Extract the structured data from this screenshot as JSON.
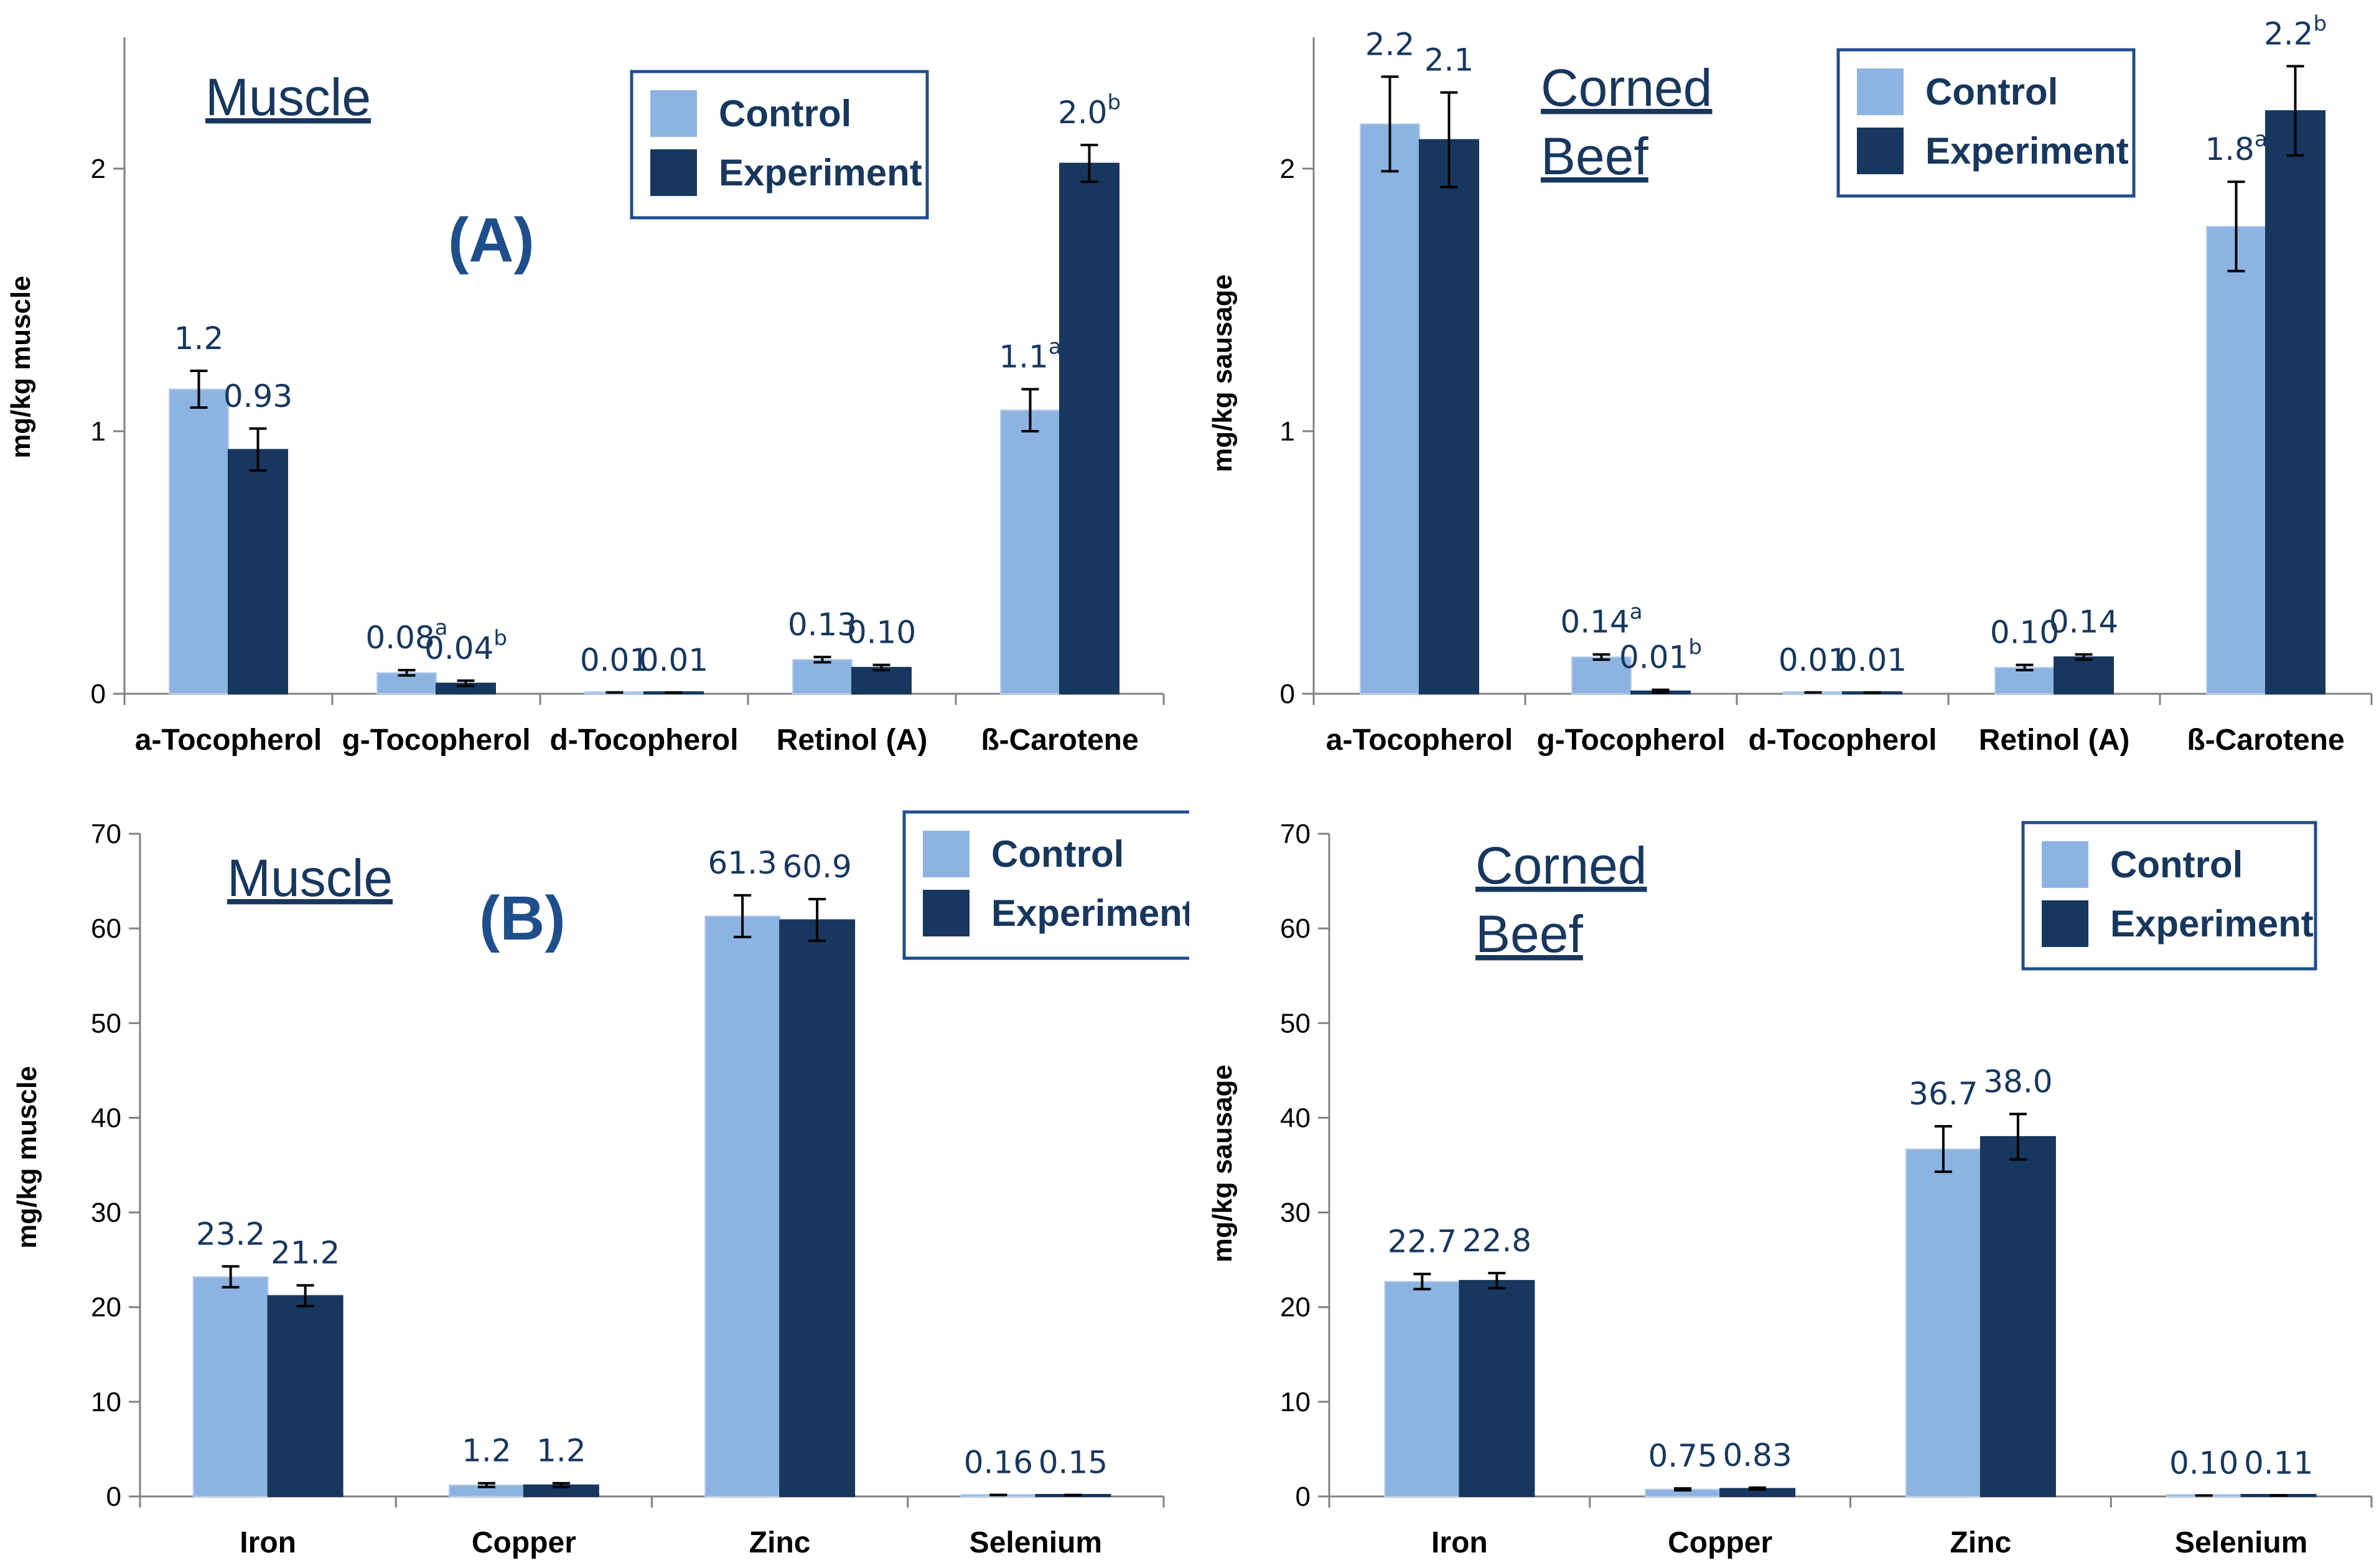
{
  "colors": {
    "control": "#8db3e2",
    "experiment": "#17375e",
    "value_text": "#17375e",
    "legend_border": "#1f4e8c",
    "panel_label": "#1f4e8c"
  },
  "chart_data": [
    {
      "id": "A-muscle",
      "type": "bar",
      "title_lines": [
        "Muscle"
      ],
      "panel_label": "(A)",
      "ylabel": "mg/kg muscle",
      "ylim": [
        0,
        2.5
      ],
      "yticks": [
        0,
        1,
        2
      ],
      "categories": [
        "a-Tocopherol",
        "g-Tocopherol",
        "d-Tocopherol",
        "Retinol (A)",
        "ß-Carotene"
      ],
      "legend": [
        "Control",
        "Experiment"
      ],
      "series": [
        {
          "name": "Control",
          "values": [
            1.16,
            0.08,
            0.005,
            0.13,
            1.08
          ],
          "errors": [
            0.07,
            0.01,
            0.0,
            0.01,
            0.08
          ],
          "labels": [
            "1.2",
            "0.08",
            "0.01",
            "0.13",
            "1.1"
          ],
          "sups": [
            "",
            "a",
            "",
            "",
            "a"
          ]
        },
        {
          "name": "Experiment",
          "values": [
            0.93,
            0.04,
            0.005,
            0.1,
            2.02
          ],
          "errors": [
            0.08,
            0.01,
            0.0,
            0.01,
            0.07
          ],
          "labels": [
            "0.93",
            "0.04",
            "0.01",
            "0.10",
            "2.0"
          ],
          "sups": [
            "",
            "b",
            "",
            "",
            "b"
          ]
        }
      ]
    },
    {
      "id": "A-corned-beef",
      "type": "bar",
      "title_lines": [
        "Corned",
        "Beef"
      ],
      "panel_label": "",
      "ylabel": "mg/kg  sausage",
      "ylim": [
        0,
        2.5
      ],
      "yticks": [
        0,
        1,
        2
      ],
      "categories": [
        "a-Tocopherol",
        "g-Tocopherol",
        "d-Tocopherol",
        "Retinol (A)",
        "ß-Carotene"
      ],
      "legend": [
        "Control",
        "Experiment"
      ],
      "series": [
        {
          "name": "Control",
          "values": [
            2.17,
            0.14,
            0.005,
            0.1,
            1.78
          ],
          "errors": [
            0.18,
            0.01,
            0.0,
            0.01,
            0.17
          ],
          "labels": [
            "2.2",
            "0.14",
            "0.01",
            "0.10",
            "1.8"
          ],
          "sups": [
            "",
            "a",
            "",
            "",
            "a"
          ]
        },
        {
          "name": "Experiment",
          "values": [
            2.11,
            0.01,
            0.005,
            0.14,
            2.22
          ],
          "errors": [
            0.18,
            0.005,
            0.0,
            0.01,
            0.17
          ],
          "labels": [
            "2.1",
            "0.01",
            "0.01",
            "0.14",
            "2.2"
          ],
          "sups": [
            "",
            "b",
            "",
            "",
            "b"
          ]
        }
      ]
    },
    {
      "id": "B-muscle",
      "type": "bar",
      "title_lines": [
        "Muscle"
      ],
      "panel_label": "(B)",
      "ylabel": "mg/kg  muscle",
      "ylim": [
        0,
        70
      ],
      "yticks": [
        0,
        10,
        20,
        30,
        40,
        50,
        60,
        70
      ],
      "categories": [
        "Iron",
        "Copper",
        "Zinc",
        "Selenium"
      ],
      "legend": [
        "Control",
        "Experiment"
      ],
      "series": [
        {
          "name": "Control",
          "values": [
            23.2,
            1.2,
            61.3,
            0.16
          ],
          "errors": [
            1.1,
            0.2,
            2.2,
            0.0
          ],
          "labels": [
            "23.2",
            "1.2",
            "61.3",
            "0.16"
          ],
          "sups": [
            "",
            "",
            "",
            ""
          ]
        },
        {
          "name": "Experiment",
          "values": [
            21.2,
            1.2,
            60.9,
            0.15
          ],
          "errors": [
            1.1,
            0.2,
            2.2,
            0.0
          ],
          "labels": [
            "21.2",
            "1.2",
            "60.9",
            "0.15"
          ],
          "sups": [
            "",
            "",
            "",
            ""
          ]
        }
      ]
    },
    {
      "id": "B-corned-beef",
      "type": "bar",
      "title_lines": [
        "Corned",
        "Beef"
      ],
      "panel_label": "",
      "ylabel": "mg/kg  sausage",
      "ylim": [
        0,
        70
      ],
      "yticks": [
        0,
        10,
        20,
        30,
        40,
        50,
        60,
        70
      ],
      "categories": [
        "Iron",
        "Copper",
        "Zinc",
        "Selenium"
      ],
      "legend": [
        "Control",
        "Experiment"
      ],
      "series": [
        {
          "name": "Control",
          "values": [
            22.7,
            0.75,
            36.7,
            0.1
          ],
          "errors": [
            0.8,
            0.1,
            2.4,
            0.0
          ],
          "labels": [
            "22.7",
            "0.75",
            "36.7",
            "0.10"
          ],
          "sups": [
            "",
            "",
            "",
            ""
          ]
        },
        {
          "name": "Experiment",
          "values": [
            22.8,
            0.83,
            38.0,
            0.11
          ],
          "errors": [
            0.8,
            0.1,
            2.4,
            0.0
          ],
          "labels": [
            "22.8",
            "0.83",
            "38.0",
            "0.11"
          ],
          "sups": [
            "",
            "",
            "",
            ""
          ]
        }
      ]
    }
  ]
}
